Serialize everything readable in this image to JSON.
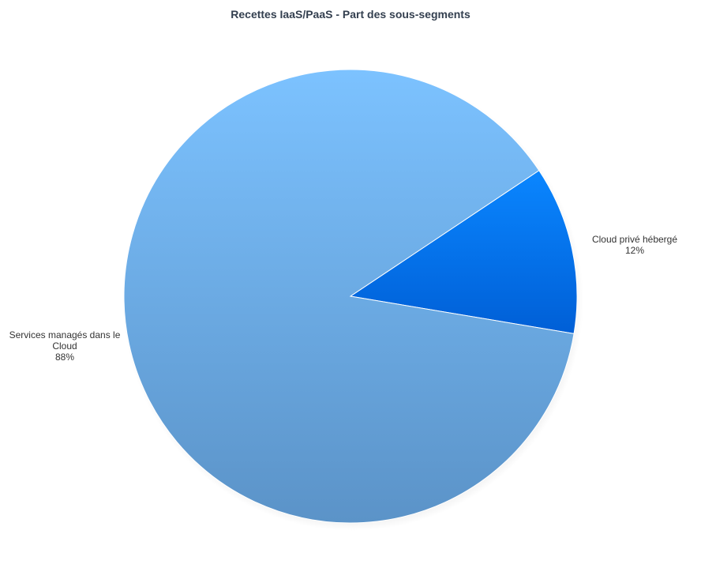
{
  "chart_data": {
    "type": "pie",
    "title": "Recettes IaaS/PaaS - Part des sous-segments",
    "slices": [
      {
        "name": "Cloud privé hébergé",
        "value": 12,
        "label_lines": [
          "Cloud  privé  hébergé",
          "12%"
        ],
        "color": "#0066e8"
      },
      {
        "name": "Services managés dans le Cloud",
        "value": 88,
        "label_lines": [
          "Services  managés  dans  le",
          "Cloud",
          "88%"
        ],
        "color": "#6fb0f0"
      }
    ],
    "legend": "none"
  }
}
